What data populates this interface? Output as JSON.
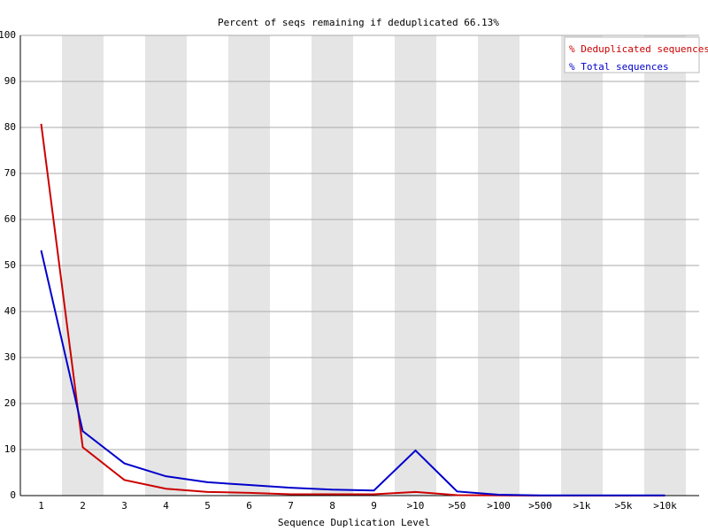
{
  "chart_data": {
    "type": "line",
    "title": "Percent of seqs remaining if deduplicated 66.13%",
    "x_label": "Sequence Duplication Level",
    "categories": [
      "1",
      "2",
      "3",
      "4",
      "5",
      "6",
      "7",
      "8",
      "9",
      ">10",
      ">50",
      ">100",
      ">500",
      ">1k",
      ">5k",
      ">10k"
    ],
    "series": [
      {
        "name": "% Deduplicated sequences",
        "color": "#cc0000",
        "values": [
          80.8,
          10.5,
          3.4,
          1.5,
          0.8,
          0.6,
          0.3,
          0.3,
          0.3,
          0.8,
          0.1,
          0.05,
          0,
          0,
          0,
          0
        ]
      },
      {
        "name": "% Total sequences",
        "color": "#0000cc",
        "values": [
          53.3,
          14.0,
          7.0,
          4.2,
          2.9,
          2.3,
          1.7,
          1.3,
          1.1,
          9.8,
          0.9,
          0.2,
          0.05,
          0.05,
          0.05,
          0.05
        ]
      }
    ],
    "ylim": [
      0,
      100
    ],
    "yticks": [
      0,
      10,
      20,
      30,
      40,
      50,
      60,
      70,
      80,
      90,
      100
    ],
    "grid": true,
    "legend": "top-right"
  }
}
